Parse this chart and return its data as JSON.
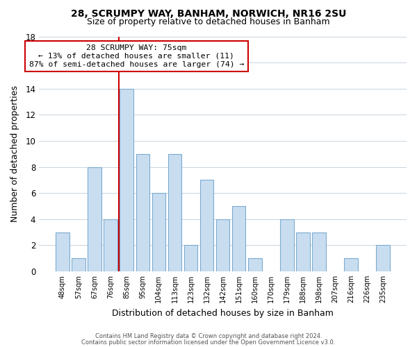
{
  "title1": "28, SCRUMPY WAY, BANHAM, NORWICH, NR16 2SU",
  "title2": "Size of property relative to detached houses in Banham",
  "xlabel": "Distribution of detached houses by size in Banham",
  "ylabel": "Number of detached properties",
  "bin_labels": [
    "48sqm",
    "57sqm",
    "67sqm",
    "76sqm",
    "85sqm",
    "95sqm",
    "104sqm",
    "113sqm",
    "123sqm",
    "132sqm",
    "142sqm",
    "151sqm",
    "160sqm",
    "170sqm",
    "179sqm",
    "188sqm",
    "198sqm",
    "207sqm",
    "216sqm",
    "226sqm",
    "235sqm"
  ],
  "bar_heights": [
    3,
    1,
    8,
    4,
    14,
    9,
    6,
    9,
    2,
    7,
    4,
    5,
    1,
    0,
    4,
    3,
    3,
    0,
    1,
    0,
    2
  ],
  "bar_color": "#c9ddf0",
  "bar_edge_color": "#7aabcf",
  "vline_x_idx": 3,
  "vline_color": "#cc0000",
  "annotation_title": "28 SCRUMPY WAY: 75sqm",
  "annotation_line1": "← 13% of detached houses are smaller (11)",
  "annotation_line2": "87% of semi-detached houses are larger (74) →",
  "annotation_box_color": "#ffffff",
  "annotation_border_color": "#cc0000",
  "ylim": [
    0,
    18
  ],
  "yticks": [
    0,
    2,
    4,
    6,
    8,
    10,
    12,
    14,
    16,
    18
  ],
  "footer1": "Contains HM Land Registry data © Crown copyright and database right 2024.",
  "footer2": "Contains public sector information licensed under the Open Government Licence v3.0.",
  "background_color": "#ffffff",
  "grid_color": "#c8d4de",
  "title1_fontsize": 10,
  "title2_fontsize": 9
}
